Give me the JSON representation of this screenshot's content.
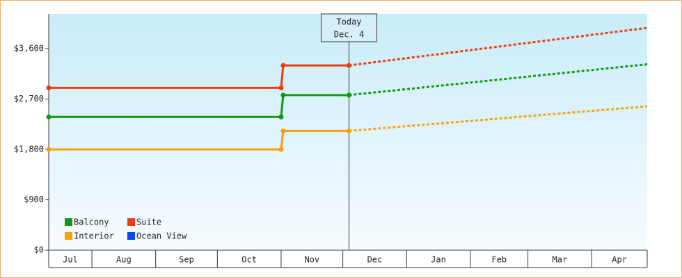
{
  "chart_data": {
    "type": "line",
    "categories": [
      "Jul",
      "Aug",
      "Sep",
      "Oct",
      "Nov",
      "Dec",
      "Jan",
      "Feb",
      "Mar",
      "Apr"
    ],
    "month_edges": [
      0,
      21,
      52,
      82,
      113,
      143,
      174,
      205,
      233,
      264,
      291
    ],
    "xlim": [
      0,
      291
    ],
    "x": [
      0,
      113,
      114,
      146,
      291
    ],
    "today": {
      "x": 146,
      "label": "Today",
      "date": "Dec. 4"
    },
    "ylim": [
      0,
      4220
    ],
    "yticks": [
      {
        "value": 0,
        "label": "$0"
      },
      {
        "value": 900,
        "label": "$900"
      },
      {
        "value": 1800,
        "label": "$1,800"
      },
      {
        "value": 2700,
        "label": "$2,700"
      },
      {
        "value": 3600,
        "label": "$3,600"
      }
    ],
    "series": [
      {
        "name": "Balcony",
        "color": "#129912",
        "values": [
          2380,
          2380,
          2770,
          2770,
          3320
        ]
      },
      {
        "name": "Suite",
        "color": "#ee3b11",
        "values": [
          2900,
          2900,
          3300,
          3300,
          3970
        ]
      },
      {
        "name": "Interior",
        "color": "#f5a20a",
        "values": [
          1800,
          1800,
          2130,
          2130,
          2570
        ]
      },
      {
        "name": "Ocean View",
        "color": "#0a45ee",
        "values": [
          null,
          null,
          null,
          null,
          null
        ]
      }
    ]
  }
}
